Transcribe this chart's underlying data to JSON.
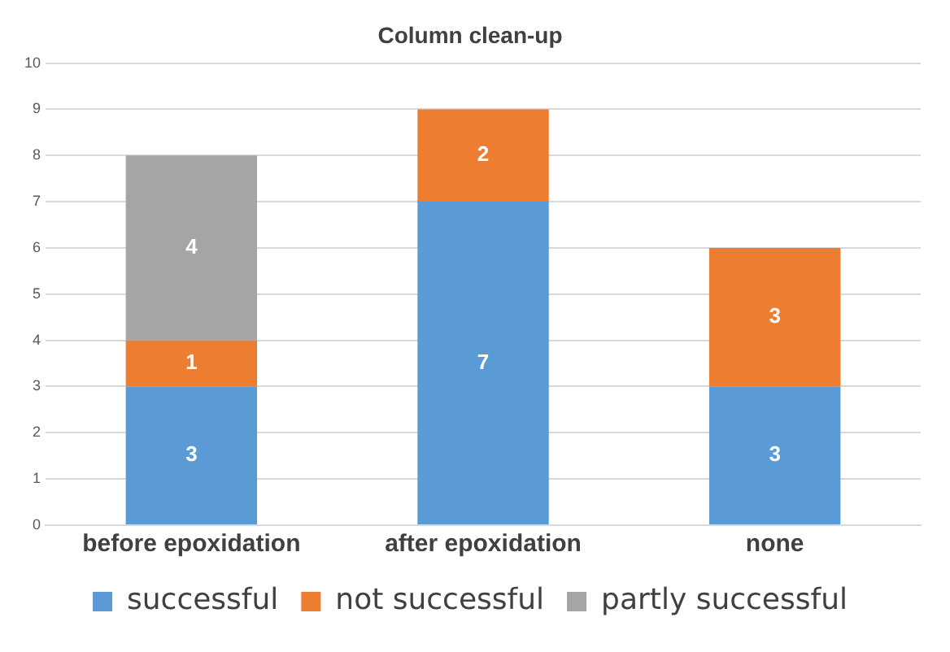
{
  "chart_data": {
    "type": "bar",
    "title": "Column clean-up",
    "categories": [
      "before epoxidation",
      "after epoxidation",
      "none"
    ],
    "series": [
      {
        "name": "successful",
        "color": "#5b9bd5",
        "values": [
          3,
          7,
          3
        ]
      },
      {
        "name": "not successful",
        "color": "#ed7d31",
        "values": [
          1,
          2,
          3
        ]
      },
      {
        "name": "partly successful",
        "color": "#a5a5a5",
        "values": [
          4,
          null,
          null
        ]
      }
    ],
    "stacked": true,
    "ylim": [
      0,
      10
    ],
    "yticks": [
      0,
      1,
      2,
      3,
      4,
      5,
      6,
      7,
      8,
      9,
      10
    ],
    "grid": "y",
    "legend": "bottom",
    "data_labels": true
  }
}
